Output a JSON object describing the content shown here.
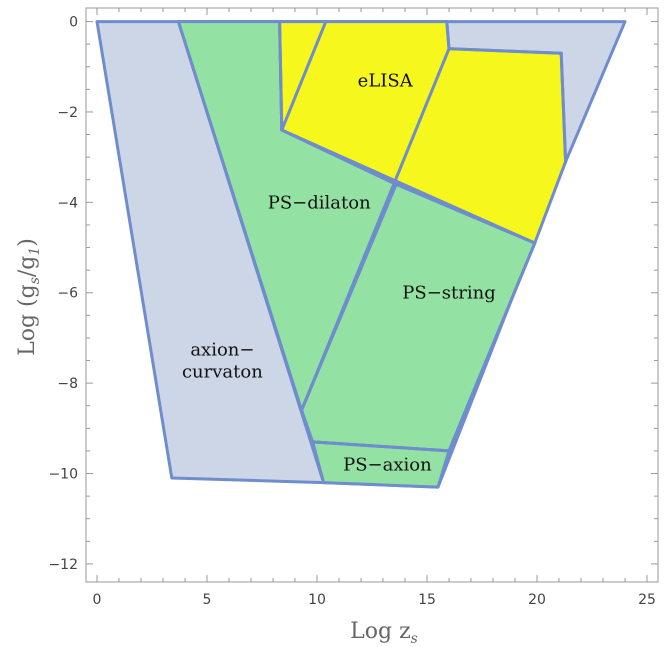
{
  "chart_data": {
    "type": "area",
    "xlabel": "Log z",
    "xlabel_sub": "s",
    "ylabel": "Log (g",
    "ylabel_sub1": "s",
    "ylabel_mid": "/g",
    "ylabel_sub2": "1",
    "ylabel_end": ")",
    "xlim": [
      -0.5,
      25.5
    ],
    "ylim": [
      -12.4,
      0.3
    ],
    "xticks": [
      0,
      5,
      10,
      15,
      20,
      25
    ],
    "yticks": [
      0,
      -2,
      -4,
      -6,
      -8,
      -10,
      -12
    ],
    "xtick_labels": [
      "0",
      "5",
      "10",
      "15",
      "20",
      "25"
    ],
    "ytick_labels": [
      "0",
      "−2",
      "−4",
      "−6",
      "−8",
      "−10",
      "−12"
    ],
    "grid": false,
    "colors": {
      "axion_curvaton": "#cdd6e6",
      "ps": "#93e2a3",
      "elisa": "#f6f71d",
      "edge": "#6f8ccd"
    },
    "regions": [
      {
        "key": "axion",
        "color_key": "axion_curvaton",
        "vertices": [
          [
            0,
            0
          ],
          [
            24,
            0
          ],
          [
            21.3,
            -3.1
          ],
          [
            15.5,
            -10.3
          ],
          [
            10.3,
            -10.2
          ],
          [
            3.4,
            -10.1
          ],
          [
            0,
            0
          ]
        ]
      },
      {
        "key": "ps_dilaton",
        "color_key": "ps",
        "vertices": [
          [
            3.7,
            0
          ],
          [
            8.3,
            0
          ],
          [
            8.4,
            -2.4
          ],
          [
            13.6,
            -3.6
          ],
          [
            9.3,
            -8.6
          ]
        ]
      },
      {
        "key": "ps_string",
        "color_key": "ps",
        "vertices": [
          [
            9.3,
            -8.6
          ],
          [
            13.6,
            -3.6
          ],
          [
            19.9,
            -4.9
          ],
          [
            16.0,
            -9.5
          ],
          [
            9.8,
            -9.3
          ]
        ]
      },
      {
        "key": "ps_axion",
        "color_key": "ps",
        "vertices": [
          [
            9.8,
            -9.3
          ],
          [
            16.0,
            -9.5
          ],
          [
            15.5,
            -10.3
          ],
          [
            10.3,
            -10.2
          ]
        ]
      },
      {
        "key": "elisa",
        "color_key": "elisa",
        "vertices": [
          [
            8.3,
            0
          ],
          [
            15.9,
            0
          ],
          [
            16.0,
            -0.6
          ],
          [
            21.1,
            -0.7
          ],
          [
            21.3,
            -3.1
          ],
          [
            19.9,
            -4.9
          ],
          [
            13.6,
            -3.6
          ],
          [
            8.4,
            -2.4
          ]
        ]
      }
    ],
    "edges": [
      [
        [
          3.7,
          0
        ],
        [
          10.3,
          -10.2
        ]
      ],
      [
        [
          8.3,
          0
        ],
        [
          8.4,
          -2.4
        ]
      ],
      [
        [
          10.4,
          0
        ],
        [
          8.4,
          -2.4
        ]
      ],
      [
        [
          8.4,
          -2.4
        ],
        [
          19.9,
          -4.9
        ]
      ],
      [
        [
          15.9,
          0
        ],
        [
          16.0,
          -0.6
        ]
      ],
      [
        [
          16.0,
          -0.6
        ],
        [
          21.1,
          -0.7
        ]
      ],
      [
        [
          21.1,
          -0.7
        ],
        [
          21.3,
          -3.1
        ]
      ],
      [
        [
          9.3,
          -8.6
        ],
        [
          16.0,
          -0.6
        ]
      ],
      [
        [
          9.8,
          -9.3
        ],
        [
          16.0,
          -9.5
        ]
      ],
      [
        [
          16.0,
          -9.5
        ],
        [
          19.9,
          -4.9
        ]
      ]
    ],
    "labels": [
      {
        "key": "elisa",
        "lines": [
          "eLISA"
        ],
        "at": [
          13.1,
          -1.3
        ]
      },
      {
        "key": "ps_dilaton",
        "lines": [
          "PS−dilaton"
        ],
        "at": [
          10.1,
          -4.0
        ]
      },
      {
        "key": "ps_string",
        "lines": [
          "PS−string"
        ],
        "at": [
          16.0,
          -6.0
        ]
      },
      {
        "key": "axion_curvaton",
        "lines": [
          "axion−",
          "curvaton"
        ],
        "at": [
          5.7,
          -7.5
        ]
      },
      {
        "key": "ps_axion",
        "lines": [
          "PS−axion"
        ],
        "at": [
          13.2,
          -9.8
        ]
      }
    ]
  }
}
